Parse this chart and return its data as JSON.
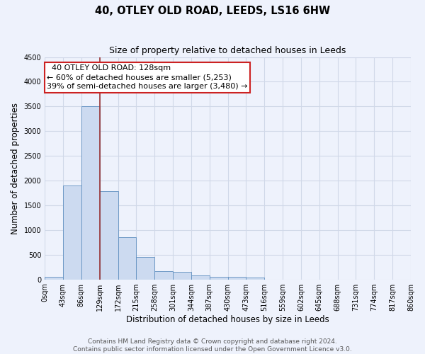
{
  "title": "40, OTLEY OLD ROAD, LEEDS, LS16 6HW",
  "subtitle": "Size of property relative to detached houses in Leeds",
  "xlabel": "Distribution of detached houses by size in Leeds",
  "ylabel": "Number of detached properties",
  "bar_values": [
    50,
    1900,
    3500,
    1780,
    850,
    450,
    165,
    160,
    80,
    55,
    50,
    45,
    0,
    0,
    0,
    0,
    0,
    0,
    0,
    0
  ],
  "bin_edges": [
    0,
    43,
    86,
    129,
    172,
    215,
    258,
    301,
    344,
    387,
    430,
    473,
    516,
    559,
    602,
    645,
    688,
    731,
    774,
    817,
    860
  ],
  "tick_labels": [
    "0sqm",
    "43sqm",
    "86sqm",
    "129sqm",
    "172sqm",
    "215sqm",
    "258sqm",
    "301sqm",
    "344sqm",
    "387sqm",
    "430sqm",
    "473sqm",
    "516sqm",
    "559sqm",
    "602sqm",
    "645sqm",
    "688sqm",
    "731sqm",
    "774sqm",
    "817sqm",
    "860sqm"
  ],
  "bar_color": "#ccdaf0",
  "bar_edge_color": "#6090c0",
  "vline_x": 129,
  "vline_color": "#993333",
  "annotation_text": "  40 OTLEY OLD ROAD: 128sqm\n← 60% of detached houses are smaller (5,253)\n39% of semi-detached houses are larger (3,480) →",
  "annotation_box_color": "white",
  "annotation_box_edge_color": "#cc2222",
  "ylim": [
    0,
    4500
  ],
  "yticks": [
    0,
    500,
    1000,
    1500,
    2000,
    2500,
    3000,
    3500,
    4000,
    4500
  ],
  "footer_line1": "Contains HM Land Registry data © Crown copyright and database right 2024.",
  "footer_line2": "Contains public sector information licensed under the Open Government Licence v3.0.",
  "bg_color": "#eef2fc",
  "grid_color": "#d0d8e8",
  "title_fontsize": 10.5,
  "subtitle_fontsize": 9,
  "axis_label_fontsize": 8.5,
  "tick_fontsize": 7,
  "annotation_fontsize": 8,
  "footer_fontsize": 6.5
}
